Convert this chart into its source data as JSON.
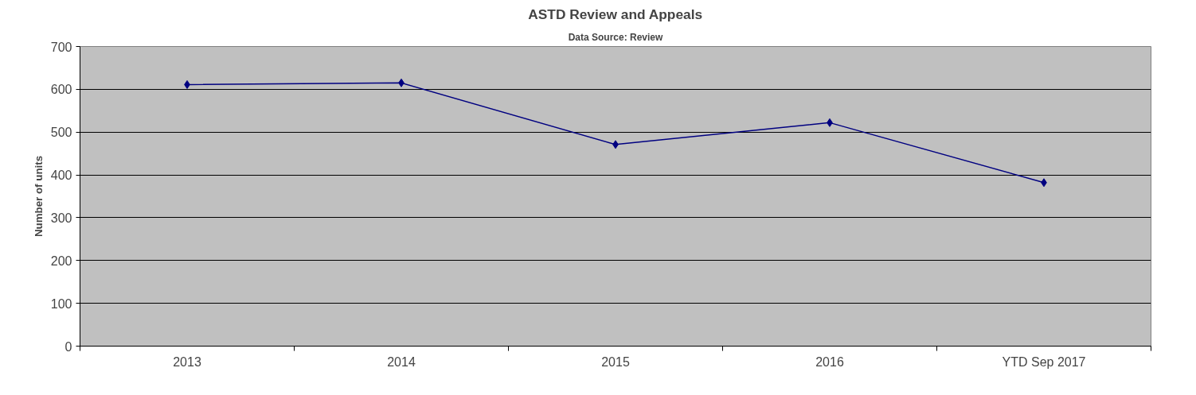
{
  "chart_data": {
    "type": "line",
    "title": "ASTD Review and Appeals",
    "subtitle": "Data Source: Review",
    "ylabel": "Number of units",
    "categories": [
      "2013",
      "2014",
      "2015",
      "2016",
      "YTD Sep 2017"
    ],
    "series": [
      {
        "color": "#000080",
        "values": [
          611,
          615,
          471,
          522,
          382
        ]
      }
    ],
    "ylim": [
      0,
      700
    ],
    "yticks": [
      0,
      100,
      200,
      300,
      400,
      500,
      600,
      700
    ],
    "grid": "y",
    "marker": "diamond",
    "line_style": "solid"
  }
}
